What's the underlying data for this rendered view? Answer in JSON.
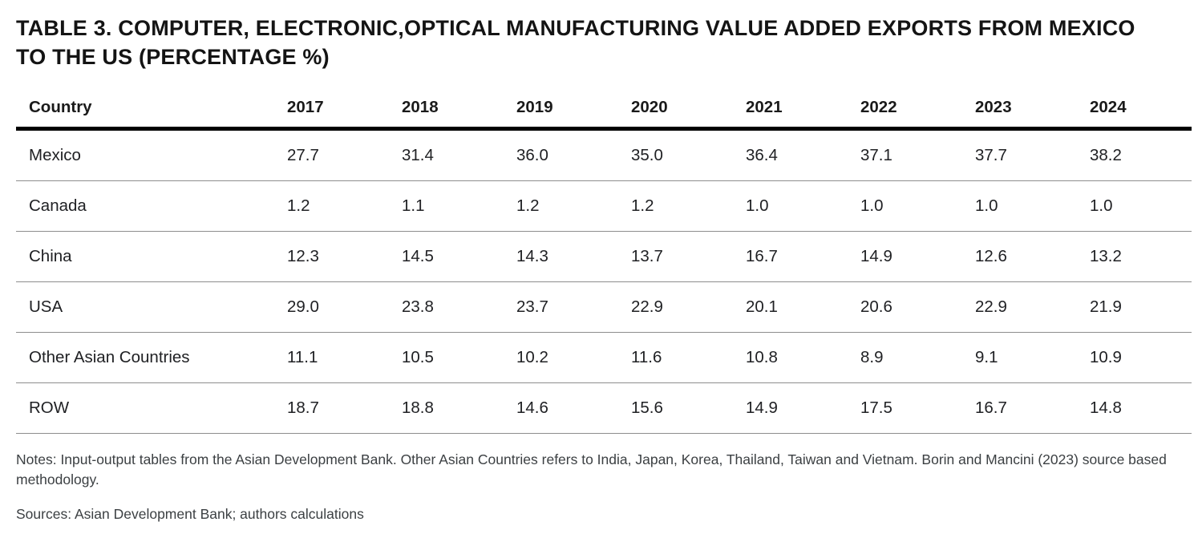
{
  "title": "TABLE 3. COMPUTER, ELECTRONIC,OPTICAL MANUFACTURING VALUE ADDED EXPORTS FROM MEXICO TO THE US (PERCENTAGE %)",
  "chart_data": {
    "type": "table",
    "title": "TABLE 3. COMPUTER, ELECTRONIC,OPTICAL MANUFACTURING VALUE ADDED EXPORTS FROM MEXICO TO THE US (PERCENTAGE %)",
    "columns": [
      "Country",
      "2017",
      "2018",
      "2019",
      "2020",
      "2021",
      "2022",
      "2023",
      "2024"
    ],
    "rows": [
      {
        "country": "Mexico",
        "values": [
          "27.7",
          "31.4",
          "36.0",
          "35.0",
          "36.4",
          "37.1",
          "37.7",
          "38.2"
        ]
      },
      {
        "country": "Canada",
        "values": [
          "1.2",
          "1.1",
          "1.2",
          "1.2",
          "1.0",
          "1.0",
          "1.0",
          "1.0"
        ]
      },
      {
        "country": "China",
        "values": [
          "12.3",
          "14.5",
          "14.3",
          "13.7",
          "16.7",
          "14.9",
          "12.6",
          "13.2"
        ]
      },
      {
        "country": "USA",
        "values": [
          "29.0",
          "23.8",
          "23.7",
          "22.9",
          "20.1",
          "20.6",
          "22.9",
          "21.9"
        ]
      },
      {
        "country": "Other Asian Countries",
        "values": [
          "11.1",
          "10.5",
          "10.2",
          "11.6",
          "10.8",
          "8.9",
          "9.1",
          "10.9"
        ]
      },
      {
        "country": "ROW",
        "values": [
          "18.7",
          "18.8",
          "14.6",
          "15.6",
          "14.9",
          "17.5",
          "16.7",
          "14.8"
        ]
      }
    ]
  },
  "notes": "Notes: Input-output tables from the Asian Development Bank. Other Asian Countries refers to India, Japan, Korea, Thailand, Taiwan and Vietnam. Borin and Mancini (2023) source based methodology.",
  "sources": "Sources: Asian Development Bank; authors calculations",
  "colors": {
    "header_rule": "#000000",
    "row_rule": "#8d8d8d",
    "text": "#202124",
    "notes_text": "#3c4043",
    "background": "#ffffff"
  }
}
